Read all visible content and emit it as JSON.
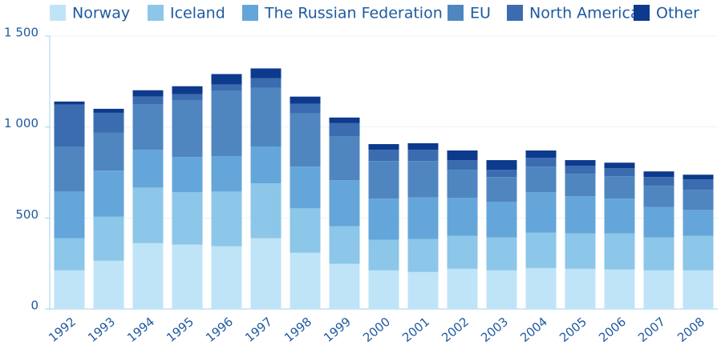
{
  "chart_data": {
    "type": "stacked_bar",
    "categories": [
      "1992",
      "1993",
      "1994",
      "1995",
      "1996",
      "1997",
      "1998",
      "1999",
      "2000",
      "2001",
      "2002",
      "2003",
      "2004",
      "2005",
      "2006",
      "2007",
      "2008"
    ],
    "series": [
      {
        "name": "Norway",
        "color": "#bfe4f7",
        "values": [
          212,
          265,
          362,
          354,
          345,
          389,
          309,
          248,
          212,
          203,
          221,
          212,
          225,
          221,
          217,
          212,
          212
        ]
      },
      {
        "name": "Iceland",
        "color": "#8cc6e8",
        "values": [
          177,
          243,
          305,
          287,
          300,
          301,
          244,
          207,
          168,
          182,
          181,
          181,
          195,
          194,
          198,
          181,
          190
        ]
      },
      {
        "name": "The Russian Federation",
        "color": "#64a6d9",
        "values": [
          256,
          252,
          208,
          194,
          195,
          203,
          229,
          252,
          226,
          229,
          208,
          195,
          221,
          204,
          191,
          168,
          142
        ]
      },
      {
        "name": "EU",
        "color": "#4f86c0",
        "values": [
          248,
          208,
          248,
          310,
          358,
          323,
          292,
          243,
          207,
          199,
          155,
          137,
          141,
          124,
          123,
          115,
          110
        ]
      },
      {
        "name": "North America",
        "color": "#3b6cb0",
        "values": [
          230,
          110,
          44,
          35,
          35,
          53,
          53,
          71,
          62,
          62,
          53,
          40,
          49,
          44,
          45,
          49,
          58
        ]
      },
      {
        "name": "Other",
        "color": "#0d3a8c",
        "values": [
          17,
          22,
          35,
          44,
          58,
          53,
          40,
          31,
          31,
          36,
          53,
          53,
          40,
          31,
          30,
          31,
          26
        ]
      }
    ],
    "ylim": [
      0,
      1500
    ],
    "yticks": [
      0,
      500,
      {
        "value": 1000,
        "label": "1 000"
      },
      {
        "value": 1500,
        "label": "1 500"
      }
    ],
    "grid": true
  }
}
